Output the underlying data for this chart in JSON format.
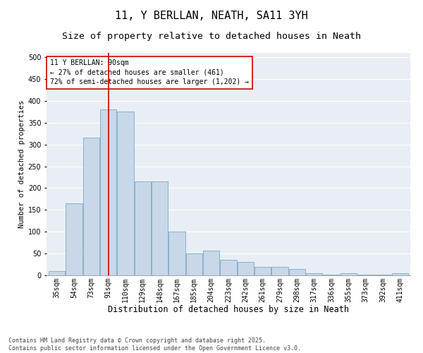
{
  "title1": "11, Y BERLLAN, NEATH, SA11 3YH",
  "title2": "Size of property relative to detached houses in Neath",
  "xlabel": "Distribution of detached houses by size in Neath",
  "ylabel": "Number of detached properties",
  "categories": [
    "35sqm",
    "54sqm",
    "73sqm",
    "91sqm",
    "110sqm",
    "129sqm",
    "148sqm",
    "167sqm",
    "185sqm",
    "204sqm",
    "223sqm",
    "242sqm",
    "261sqm",
    "279sqm",
    "298sqm",
    "317sqm",
    "336sqm",
    "355sqm",
    "373sqm",
    "392sqm",
    "411sqm"
  ],
  "values": [
    10,
    165,
    315,
    380,
    375,
    215,
    215,
    100,
    50,
    57,
    35,
    30,
    20,
    20,
    15,
    5,
    2,
    5,
    2,
    2,
    5
  ],
  "bar_color": "#c8d8e8",
  "bar_edge_color": "#7aa8cc",
  "vline_x_index": 3,
  "vline_color": "#cc0000",
  "annotation_line1": "11 Y BERLLAN: 90sqm",
  "annotation_line2": "← 27% of detached houses are smaller (461)",
  "annotation_line3": "72% of semi-detached houses are larger (1,202) →",
  "annotation_box_color": "#cc0000",
  "ylim": [
    0,
    510
  ],
  "yticks": [
    0,
    50,
    100,
    150,
    200,
    250,
    300,
    350,
    400,
    450,
    500
  ],
  "bg_color": "#e8eef4",
  "footer_text": "Contains HM Land Registry data © Crown copyright and database right 2025.\nContains public sector information licensed under the Open Government Licence v3.0.",
  "title1_fontsize": 11,
  "title2_fontsize": 9.5,
  "xlabel_fontsize": 8.5,
  "ylabel_fontsize": 7.5,
  "tick_fontsize": 7,
  "annotation_fontsize": 7,
  "footer_fontsize": 6
}
